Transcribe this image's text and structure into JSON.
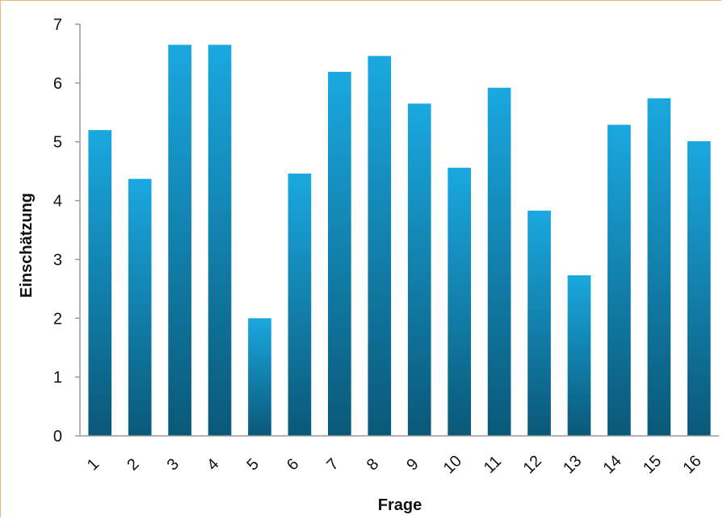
{
  "chart_data": {
    "type": "bar",
    "categories": [
      "1",
      "2",
      "3",
      "4",
      "5",
      "6",
      "7",
      "8",
      "9",
      "10",
      "11",
      "12",
      "13",
      "14",
      "15",
      "16"
    ],
    "values": [
      5.2,
      4.37,
      6.65,
      6.65,
      2.0,
      4.46,
      6.19,
      6.46,
      5.65,
      4.56,
      5.92,
      3.83,
      2.73,
      5.29,
      5.74,
      5.01
    ],
    "title": "",
    "xlabel": "Frage",
    "ylabel": "Einschätzung",
    "ylim": [
      0,
      7
    ],
    "yticks": [
      "0",
      "1",
      "2",
      "3",
      "4",
      "5",
      "6",
      "7"
    ],
    "grid": false,
    "colors": {
      "bar_top": "#1aa8e0",
      "bar_bottom": "#0a5878",
      "axis": "#9a9a9a",
      "frame": "#f0b47a"
    }
  }
}
